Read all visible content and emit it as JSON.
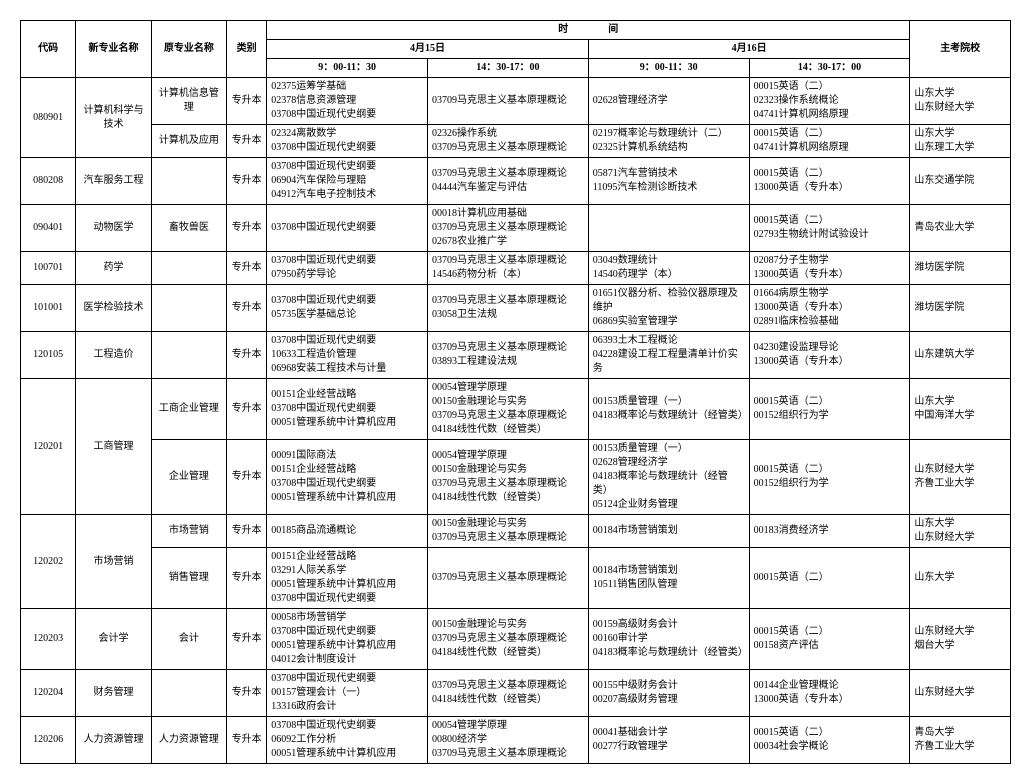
{
  "headers": {
    "code": "代码",
    "newMajor": "新专业名称",
    "oldMajor": "原专业名称",
    "category": "类别",
    "time": "时　　　　间",
    "day1": "4月15日",
    "day2": "4月16日",
    "school": "主考院校",
    "slot_am": "9：00-11：30",
    "slot_pm": "14：30-17：00"
  },
  "rows": [
    {
      "code": "080901",
      "newMajor": "计算机科学与技术",
      "subs": [
        {
          "oldMajor": "计算机信息管理",
          "cat": "专升本",
          "d1am": "02375运筹学基础\n02378信息资源管理\n03708中国近现代史纲要",
          "d1pm": "03709马克思主义基本原理概论",
          "d2am": "02628管理经济学",
          "d2pm": "00015英语（二）\n02323操作系统概论\n04741计算机网络原理",
          "school": "山东大学\n山东财经大学"
        },
        {
          "oldMajor": "计算机及应用",
          "cat": "专升本",
          "d1am": "02324离散数学\n03708中国近现代史纲要",
          "d1pm": "02326操作系统\n03709马克思主义基本原理概论",
          "d2am": "02197概率论与数理统计（二）\n02325计算机系统结构",
          "d2pm": "00015英语（二）\n04741计算机网络原理",
          "school": "山东大学\n山东理工大学"
        }
      ]
    },
    {
      "code": "080208",
      "newMajor": "汽车服务工程",
      "subs": [
        {
          "oldMajor": "",
          "cat": "专升本",
          "d1am": "03708中国近现代史纲要\n06904汽车保险与理赔\n04912汽车电子控制技术",
          "d1pm": "03709马克思主义基本原理概论\n04444汽车鉴定与评估",
          "d2am": "05871汽车营销技术\n11095汽车检测诊断技术",
          "d2pm": "00015英语（二）\n13000英语（专升本）",
          "school": "山东交通学院"
        }
      ]
    },
    {
      "code": "090401",
      "newMajor": "动物医学",
      "subs": [
        {
          "oldMajor": "畜牧兽医",
          "cat": "专升本",
          "d1am": "03708中国近现代史纲要",
          "d1pm": "00018计算机应用基础\n03709马克思主义基本原理概论\n02678农业推广学",
          "d2am": "",
          "d2pm": "00015英语（二）\n02793生物统计附试验设计",
          "school": "青岛农业大学"
        }
      ]
    },
    {
      "code": "100701",
      "newMajor": "药学",
      "subs": [
        {
          "oldMajor": "",
          "cat": "专升本",
          "d1am": "03708中国近现代史纲要\n07950药学导论",
          "d1pm": "03709马克思主义基本原理概论\n14546药物分析（本）",
          "d2am": "03049数理统计\n14540药理学（本）",
          "d2pm": "02087分子生物学\n13000英语（专升本）",
          "school": "潍坊医学院"
        }
      ]
    },
    {
      "code": "101001",
      "newMajor": "医学检验技术",
      "subs": [
        {
          "oldMajor": "",
          "cat": "专升本",
          "d1am": "03708中国近现代史纲要\n05735医学基础总论",
          "d1pm": "03709马克思主义基本原理概论\n03058卫生法规",
          "d2am": "01651仪器分析、检验仪器原理及维护\n06869实验室管理学",
          "d2pm": "01664病原生物学\n13000英语（专升本）\n02891临床检验基础",
          "school": "潍坊医学院"
        }
      ]
    },
    {
      "code": "120105",
      "newMajor": "工程造价",
      "subs": [
        {
          "oldMajor": "",
          "cat": "专升本",
          "d1am": "03708中国近现代史纲要\n10633工程造价管理\n06968安装工程技术与计量",
          "d1pm": "03709马克思主义基本原理概论\n03893工程建设法规",
          "d2am": "06393土木工程概论\n04228建设工程工程量清单计价实务",
          "d2pm": "04230建设监理导论\n13000英语（专升本）",
          "school": "山东建筑大学"
        }
      ]
    },
    {
      "code": "120201",
      "newMajor": "工商管理",
      "subs": [
        {
          "oldMajor": "工商企业管理",
          "cat": "专升本",
          "d1am": "00151企业经营战略\n03708中国近现代史纲要\n00051管理系统中计算机应用",
          "d1pm": "00054管理学原理\n00150金融理论与实务\n03709马克思主义基本原理概论\n04184线性代数（经管类）",
          "d2am": "00153质量管理（一）\n04183概率论与数理统计（经管类）",
          "d2pm": "00015英语（二）\n00152组织行为学",
          "school": "山东大学\n中国海洋大学"
        },
        {
          "oldMajor": "企业管理",
          "cat": "专升本",
          "d1am": "00091国际商法\n00151企业经营战略\n03708中国近现代史纲要\n00051管理系统中计算机应用",
          "d1pm": "00054管理学原理\n00150金融理论与实务\n03709马克思主义基本原理概论\n04184线性代数（经管类）",
          "d2am": "00153质量管理（一）\n02628管理经济学\n04183概率论与数理统计（经管类）\n05124企业财务管理",
          "d2pm": "00015英语（二）\n00152组织行为学",
          "school": "山东财经大学\n齐鲁工业大学"
        }
      ]
    },
    {
      "code": "120202",
      "newMajor": "市场营销",
      "subs": [
        {
          "oldMajor": "市场营销",
          "cat": "专升本",
          "d1am": "00185商品流通概论",
          "d1pm": "00150金融理论与实务\n03709马克思主义基本原理概论",
          "d2am": "00184市场营销策划",
          "d2pm": "00183消费经济学",
          "school": "山东大学\n山东财经大学"
        },
        {
          "oldMajor": "销售管理",
          "cat": "专升本",
          "d1am": "00151企业经营战略\n03291人际关系学\n00051管理系统中计算机应用\n03708中国近现代史纲要",
          "d1pm": "03709马克思主义基本原理概论",
          "d2am": "00184市场营销策划\n10511销售团队管理",
          "d2pm": "00015英语（二）",
          "school": "山东大学"
        }
      ]
    },
    {
      "code": "120203",
      "newMajor": "会计学",
      "subs": [
        {
          "oldMajor": "会计",
          "cat": "专升本",
          "d1am": "00058市场营销学\n03708中国近现代史纲要\n00051管理系统中计算机应用\n04012会计制度设计",
          "d1pm": "00150金融理论与实务\n03709马克思主义基本原理概论\n04184线性代数（经管类）",
          "d2am": "00159高级财务会计\n00160审计学\n04183概率论与数理统计（经管类）",
          "d2pm": "00015英语（二）\n00158资产评估",
          "school": "山东财经大学\n烟台大学"
        }
      ]
    },
    {
      "code": "120204",
      "newMajor": "财务管理",
      "subs": [
        {
          "oldMajor": "",
          "cat": "专升本",
          "d1am": "03708中国近现代史纲要\n00157管理会计（一）\n13316政府会计",
          "d1pm": "03709马克思主义基本原理概论\n04184线性代数（经管类）",
          "d2am": "00155中级财务会计\n00207高级财务管理",
          "d2pm": "00144企业管理概论\n13000英语（专升本）",
          "school": "山东财经大学"
        }
      ]
    },
    {
      "code": "120206",
      "newMajor": "人力资源管理",
      "subs": [
        {
          "oldMajor": "人力资源管理",
          "cat": "专升本",
          "d1am": "03708中国近现代史纲要\n06092工作分析\n00051管理系统中计算机应用",
          "d1pm": "00054管理学原理\n00800经济学\n03709马克思主义基本原理概论",
          "d2am": "00041基础会计学\n00277行政管理学",
          "d2pm": "00015英语（二）\n00034社会学概论",
          "school": "青岛大学\n齐鲁工业大学"
        }
      ]
    }
  ]
}
